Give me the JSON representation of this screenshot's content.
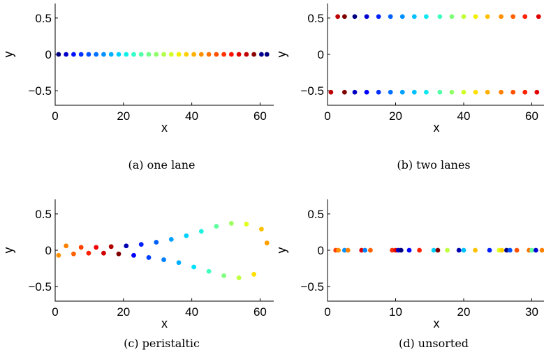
{
  "chart_data": [
    {
      "type": "scatter",
      "caption": "(a) one lane",
      "xlabel": "x",
      "ylabel": "y",
      "xlim": [
        0,
        64
      ],
      "ylim": [
        -0.7,
        0.7
      ],
      "xticks": [
        "0",
        "20",
        "40",
        "60"
      ],
      "yticks": [
        "0.5",
        "0",
        "−0.5"
      ],
      "points": [
        {
          "x": 1.0,
          "y": 0,
          "color": "#000080"
        },
        {
          "x": 3.2,
          "y": 0,
          "color": "#0000c8"
        },
        {
          "x": 5.4,
          "y": 0,
          "color": "#0010ff"
        },
        {
          "x": 7.6,
          "y": 0,
          "color": "#0030ff"
        },
        {
          "x": 9.8,
          "y": 0,
          "color": "#0050ff"
        },
        {
          "x": 12.0,
          "y": 0,
          "color": "#0070ff"
        },
        {
          "x": 14.2,
          "y": 0,
          "color": "#0090ff"
        },
        {
          "x": 16.4,
          "y": 0,
          "color": "#00b0ff"
        },
        {
          "x": 18.6,
          "y": 0,
          "color": "#00d0ff"
        },
        {
          "x": 20.8,
          "y": 0,
          "color": "#10f0e8"
        },
        {
          "x": 23.0,
          "y": 0,
          "color": "#30ffc8"
        },
        {
          "x": 25.2,
          "y": 0,
          "color": "#50ffa8"
        },
        {
          "x": 27.4,
          "y": 0,
          "color": "#70ff88"
        },
        {
          "x": 29.6,
          "y": 0,
          "color": "#90ff68"
        },
        {
          "x": 31.8,
          "y": 0,
          "color": "#b0ff48"
        },
        {
          "x": 34.0,
          "y": 0,
          "color": "#d0ff28"
        },
        {
          "x": 36.2,
          "y": 0,
          "color": "#f0f000"
        },
        {
          "x": 38.4,
          "y": 0,
          "color": "#ffd000"
        },
        {
          "x": 40.6,
          "y": 0,
          "color": "#ffb000"
        },
        {
          "x": 42.8,
          "y": 0,
          "color": "#ff9000"
        },
        {
          "x": 45.0,
          "y": 0,
          "color": "#ff7000"
        },
        {
          "x": 47.2,
          "y": 0,
          "color": "#ff5000"
        },
        {
          "x": 49.4,
          "y": 0,
          "color": "#ff3000"
        },
        {
          "x": 51.6,
          "y": 0,
          "color": "#ff1000"
        },
        {
          "x": 53.8,
          "y": 0,
          "color": "#e00000"
        },
        {
          "x": 56.0,
          "y": 0,
          "color": "#c00000"
        },
        {
          "x": 58.2,
          "y": 0,
          "color": "#8b0000"
        },
        {
          "x": 60.4,
          "y": 0,
          "color": "#000090"
        },
        {
          "x": 62.0,
          "y": 0,
          "color": "#000080"
        }
      ]
    },
    {
      "type": "scatter",
      "caption": "(b) two lanes",
      "xlabel": "x",
      "ylabel": "y",
      "xlim": [
        0,
        64
      ],
      "ylim": [
        -0.7,
        0.7
      ],
      "xticks": [
        "0",
        "20",
        "40",
        "60"
      ],
      "yticks": [
        "0.5",
        "0",
        "−0.5"
      ],
      "points": [
        {
          "x": 1.0,
          "y": -0.52,
          "color": "#c00000"
        },
        {
          "x": 3.0,
          "y": 0.52,
          "color": "#c00000"
        },
        {
          "x": 5.0,
          "y": -0.52,
          "color": "#800000"
        },
        {
          "x": 5.0,
          "y": 0.52,
          "color": "#800000"
        },
        {
          "x": 8.0,
          "y": -0.52,
          "color": "#0000c0"
        },
        {
          "x": 8.0,
          "y": 0.52,
          "color": "#000080"
        },
        {
          "x": 11.5,
          "y": -0.52,
          "color": "#0000ff"
        },
        {
          "x": 11.5,
          "y": 0.52,
          "color": "#0000d0"
        },
        {
          "x": 15.0,
          "y": -0.52,
          "color": "#0030ff"
        },
        {
          "x": 15.0,
          "y": 0.52,
          "color": "#0020ff"
        },
        {
          "x": 18.5,
          "y": -0.52,
          "color": "#0070ff"
        },
        {
          "x": 18.5,
          "y": 0.52,
          "color": "#0060ff"
        },
        {
          "x": 22.0,
          "y": -0.52,
          "color": "#00a0ff"
        },
        {
          "x": 22.0,
          "y": 0.52,
          "color": "#0090ff"
        },
        {
          "x": 25.5,
          "y": -0.52,
          "color": "#00c0ff"
        },
        {
          "x": 25.5,
          "y": 0.52,
          "color": "#00c0ff"
        },
        {
          "x": 29.0,
          "y": -0.52,
          "color": "#10e8f0"
        },
        {
          "x": 29.0,
          "y": 0.52,
          "color": "#10e8f0"
        },
        {
          "x": 33.0,
          "y": -0.52,
          "color": "#50ffa8"
        },
        {
          "x": 33.0,
          "y": 0.52,
          "color": "#40ffc0"
        },
        {
          "x": 36.5,
          "y": -0.52,
          "color": "#90ff68"
        },
        {
          "x": 36.5,
          "y": 0.52,
          "color": "#80ff78"
        },
        {
          "x": 40.0,
          "y": -0.52,
          "color": "#d0ff28"
        },
        {
          "x": 40.0,
          "y": 0.52,
          "color": "#c0ff38"
        },
        {
          "x": 43.5,
          "y": -0.52,
          "color": "#ffe000"
        },
        {
          "x": 43.5,
          "y": 0.52,
          "color": "#f0f000"
        },
        {
          "x": 47.0,
          "y": -0.52,
          "color": "#ffb000"
        },
        {
          "x": 47.0,
          "y": 0.52,
          "color": "#ffc000"
        },
        {
          "x": 51.0,
          "y": -0.52,
          "color": "#ff8000"
        },
        {
          "x": 51.0,
          "y": 0.52,
          "color": "#ff9000"
        },
        {
          "x": 54.5,
          "y": -0.52,
          "color": "#ff5000"
        },
        {
          "x": 54.5,
          "y": 0.52,
          "color": "#ff6000"
        },
        {
          "x": 58.0,
          "y": -0.52,
          "color": "#ff2000"
        },
        {
          "x": 58.0,
          "y": 0.52,
          "color": "#ff2000"
        },
        {
          "x": 61.5,
          "y": -0.52,
          "color": "#e00000"
        },
        {
          "x": 62.0,
          "y": 0.52,
          "color": "#e00000"
        }
      ]
    },
    {
      "type": "scatter",
      "caption": "(c) peristaltic",
      "xlabel": "x",
      "ylabel": "y",
      "xlim": [
        0,
        64
      ],
      "ylim": [
        -0.7,
        0.7
      ],
      "xticks": [
        "0",
        "20",
        "40",
        "60"
      ],
      "yticks": [
        "0.5",
        "0",
        "−0.5"
      ],
      "points": [
        {
          "x": 1.0,
          "y": -0.07,
          "color": "#ff9000"
        },
        {
          "x": 3.2,
          "y": 0.06,
          "color": "#ff8000"
        },
        {
          "x": 5.4,
          "y": -0.05,
          "color": "#ff6000"
        },
        {
          "x": 7.6,
          "y": 0.04,
          "color": "#ff4000"
        },
        {
          "x": 9.8,
          "y": -0.04,
          "color": "#ff2000"
        },
        {
          "x": 12.0,
          "y": 0.04,
          "color": "#f00000"
        },
        {
          "x": 14.2,
          "y": -0.04,
          "color": "#d00000"
        },
        {
          "x": 16.4,
          "y": 0.05,
          "color": "#b00000"
        },
        {
          "x": 18.6,
          "y": -0.05,
          "color": "#800000"
        },
        {
          "x": 20.8,
          "y": 0.06,
          "color": "#0000b0"
        },
        {
          "x": 23.0,
          "y": -0.07,
          "color": "#0000ff"
        },
        {
          "x": 25.2,
          "y": 0.08,
          "color": "#0020ff"
        },
        {
          "x": 27.4,
          "y": -0.1,
          "color": "#0040ff"
        },
        {
          "x": 29.6,
          "y": 0.11,
          "color": "#0060ff"
        },
        {
          "x": 31.8,
          "y": -0.13,
          "color": "#0080ff"
        },
        {
          "x": 34.0,
          "y": 0.15,
          "color": "#00a0ff"
        },
        {
          "x": 36.2,
          "y": -0.17,
          "color": "#00b0ff"
        },
        {
          "x": 38.4,
          "y": 0.2,
          "color": "#00d0ff"
        },
        {
          "x": 40.6,
          "y": -0.23,
          "color": "#00e0ff"
        },
        {
          "x": 42.8,
          "y": 0.26,
          "color": "#20f0e0"
        },
        {
          "x": 45.0,
          "y": -0.29,
          "color": "#40ffc0"
        },
        {
          "x": 47.2,
          "y": 0.33,
          "color": "#60ffa0"
        },
        {
          "x": 49.4,
          "y": -0.35,
          "color": "#80ff80"
        },
        {
          "x": 51.6,
          "y": 0.37,
          "color": "#a0ff60"
        },
        {
          "x": 53.8,
          "y": -0.38,
          "color": "#c0ff40"
        },
        {
          "x": 56.0,
          "y": 0.36,
          "color": "#e0ff20"
        },
        {
          "x": 58.2,
          "y": -0.33,
          "color": "#ffe000"
        },
        {
          "x": 60.4,
          "y": 0.29,
          "color": "#ffc000"
        },
        {
          "x": 62.0,
          "y": 0.1,
          "color": "#ffa000"
        }
      ]
    },
    {
      "type": "scatter",
      "caption": "(d) unsorted",
      "xlabel": "x",
      "ylabel": "y",
      "xlim": [
        0,
        32
      ],
      "ylim": [
        -0.7,
        0.7
      ],
      "xticks": [
        "0",
        "10",
        "20",
        "30"
      ],
      "yticks": [
        "0.5",
        "0",
        "−0.5"
      ],
      "points": [
        {
          "x": 1.2,
          "y": 0,
          "color": "#ff4000"
        },
        {
          "x": 1.6,
          "y": 0,
          "color": "#ff9000"
        },
        {
          "x": 2.5,
          "y": 0,
          "color": "#0090ff"
        },
        {
          "x": 3.0,
          "y": 0,
          "color": "#ff8000"
        },
        {
          "x": 5.0,
          "y": 0,
          "color": "#e00000"
        },
        {
          "x": 5.5,
          "y": 0,
          "color": "#0080ff"
        },
        {
          "x": 6.3,
          "y": 0,
          "color": "#ff6000"
        },
        {
          "x": 9.5,
          "y": 0,
          "color": "#ff3000"
        },
        {
          "x": 10.0,
          "y": 0,
          "color": "#e00000"
        },
        {
          "x": 10.4,
          "y": 0,
          "color": "#0000c0"
        },
        {
          "x": 10.8,
          "y": 0,
          "color": "#000080"
        },
        {
          "x": 12.0,
          "y": 0,
          "color": "#0000ff"
        },
        {
          "x": 13.5,
          "y": 0,
          "color": "#ff2000"
        },
        {
          "x": 15.6,
          "y": 0,
          "color": "#00d0ff"
        },
        {
          "x": 16.2,
          "y": 0,
          "color": "#800000"
        },
        {
          "x": 17.6,
          "y": 0,
          "color": "#c0ff40"
        },
        {
          "x": 19.3,
          "y": 0,
          "color": "#0000b0"
        },
        {
          "x": 20.0,
          "y": 0,
          "color": "#00c0ff"
        },
        {
          "x": 21.7,
          "y": 0,
          "color": "#ffc000"
        },
        {
          "x": 23.8,
          "y": 0,
          "color": "#0020ff"
        },
        {
          "x": 25.2,
          "y": 0,
          "color": "#e0ff20"
        },
        {
          "x": 25.6,
          "y": 0,
          "color": "#ffd000"
        },
        {
          "x": 26.3,
          "y": 0,
          "color": "#000080"
        },
        {
          "x": 26.8,
          "y": 0,
          "color": "#0050ff"
        },
        {
          "x": 27.8,
          "y": 0,
          "color": "#ff5000"
        },
        {
          "x": 29.6,
          "y": 0,
          "color": "#ff7000"
        },
        {
          "x": 30.0,
          "y": 0,
          "color": "#60ffa0"
        },
        {
          "x": 30.6,
          "y": 0,
          "color": "#0000d0"
        },
        {
          "x": 31.5,
          "y": 0,
          "color": "#ff8000"
        }
      ]
    }
  ]
}
